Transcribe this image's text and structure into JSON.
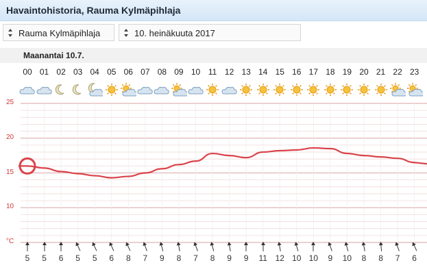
{
  "header": {
    "title": "Havaintohistoria, Rauma Kylmäpihlaja"
  },
  "station_select": {
    "value": "Rauma Kylmäpihlaja",
    "icon": "updown-arrows-icon"
  },
  "date_select": {
    "value": "10. heinäkuuta 2017",
    "icon": "updown-arrows-icon"
  },
  "day": {
    "label": "Maanantai 10.7."
  },
  "hours": [
    "00",
    "01",
    "02",
    "03",
    "04",
    "05",
    "06",
    "07",
    "08",
    "09",
    "10",
    "11",
    "12",
    "13",
    "14",
    "15",
    "16",
    "17",
    "18",
    "19",
    "20",
    "21",
    "22",
    "23"
  ],
  "weather_icons": [
    "cloud-icon",
    "cloud-icon",
    "moon-icon",
    "moon-icon",
    "moon-cloud-icon",
    "sun-icon",
    "sun-cloud-icon",
    "cloud-icon",
    "cloud-icon",
    "sun-cloud-icon",
    "cloud-icon",
    "sun-icon",
    "cloud-icon",
    "sun-icon",
    "sun-icon",
    "sun-icon",
    "sun-icon",
    "sun-icon",
    "sun-icon",
    "sun-icon",
    "sun-icon",
    "sun-icon",
    "sun-cloud-icon",
    "sun-cloud-icon"
  ],
  "chart_data": {
    "type": "line",
    "ylabel": "°C",
    "ylim": [
      5,
      25
    ],
    "y_ticks": [
      "25",
      "20",
      "15",
      "10",
      "°C"
    ],
    "grid": true,
    "x": [
      "00",
      "01",
      "02",
      "03",
      "04",
      "05",
      "06",
      "07",
      "08",
      "09",
      "10",
      "11",
      "12",
      "13",
      "14",
      "15",
      "16",
      "17",
      "18",
      "19",
      "20",
      "21",
      "22",
      "23"
    ],
    "series": [
      {
        "values": [
          16.0,
          15.7,
          15.2,
          14.9,
          14.6,
          14.3,
          14.5,
          15.0,
          15.6,
          16.2,
          16.7,
          17.8,
          17.5,
          17.2,
          18.0,
          18.2,
          18.3,
          18.6,
          18.5,
          17.8,
          17.5,
          17.3,
          17.1,
          16.5
        ]
      }
    ],
    "highlight": {
      "x": "00",
      "y": 16.0
    },
    "colors": {
      "line": "#d9434a",
      "grid": "#f0d8d8",
      "major_grid": "#e0b4b4"
    }
  },
  "wind": {
    "speeds": [
      "5",
      "5",
      "6",
      "5",
      "5",
      "6",
      "8",
      "7",
      "9",
      "8",
      "7",
      "8",
      "9",
      "9",
      "11",
      "12",
      "10",
      "10",
      "9",
      "10",
      "8",
      "8",
      "7",
      "6"
    ],
    "arrow_icon": "wind-arrow-icon"
  }
}
